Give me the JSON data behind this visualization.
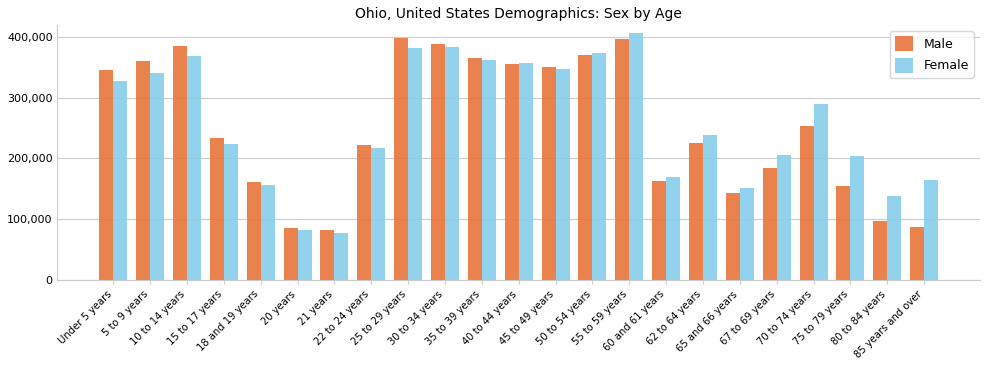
{
  "title": "Ohio, United States Demographics: Sex by Age",
  "categories": [
    "Under 5 years",
    "5 to 9 years",
    "10 to 14 years",
    "15 to 17 years",
    "18 and 19 years",
    "20 years",
    "21 years",
    "22 to 24 years",
    "25 to 29 years",
    "30 to 34 years",
    "35 to 39 years",
    "40 to 44 years",
    "45 to 49 years",
    "50 to 54 years",
    "55 to 59 years",
    "60 and 61 years",
    "62 to 64 years",
    "65 and 66 years",
    "67 to 69 years",
    "70 to 74 years",
    "75 to 79 years",
    "80 to 84 years",
    "85 years and over"
  ],
  "male": [
    345000,
    360000,
    385000,
    233000,
    162000,
    86000,
    83000,
    223000,
    399000,
    388000,
    365000,
    355000,
    351000,
    370000,
    397000,
    163000,
    225000,
    143000,
    184000,
    253000,
    155000,
    97000,
    87000
  ],
  "female": [
    328000,
    340000,
    368000,
    224000,
    157000,
    82000,
    77000,
    218000,
    382000,
    383000,
    362000,
    358000,
    348000,
    374000,
    406000,
    170000,
    238000,
    152000,
    206000,
    289000,
    204000,
    139000,
    164000
  ],
  "male_color": "#E8743B",
  "female_color": "#87CEEB",
  "bar_width": 0.38,
  "ylim": [
    0,
    420000
  ],
  "yticks": [
    0,
    100000,
    200000,
    300000,
    400000
  ],
  "ytick_labels": [
    "0",
    "100,000",
    "200,000",
    "300,000",
    "400,000"
  ],
  "legend_labels": [
    "Male",
    "Female"
  ],
  "background_color": "#ffffff",
  "title_fontsize": 10
}
